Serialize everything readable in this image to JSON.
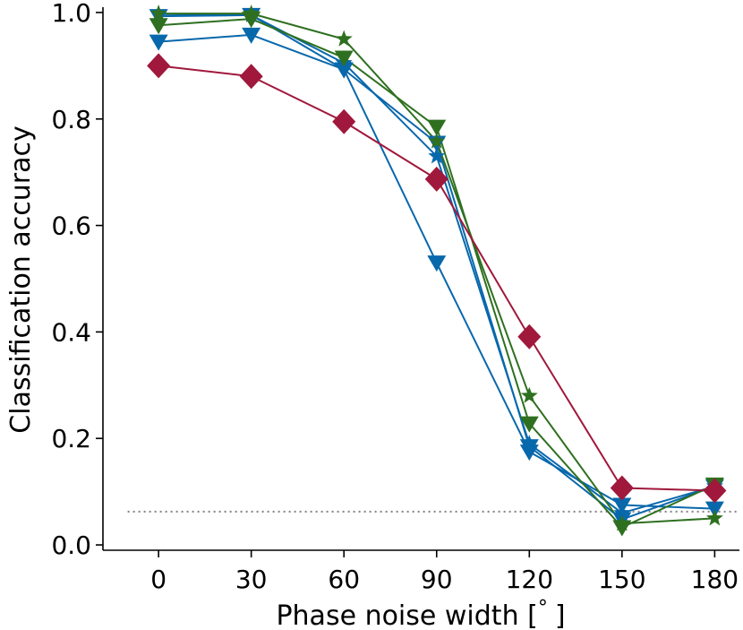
{
  "chart_data": {
    "type": "line",
    "title": "",
    "xlabel": "Phase noise width [$^\\circ$]",
    "xlabel_parts": {
      "text": "Phase noise width [",
      "degree": "°",
      "close": "]"
    },
    "ylabel": "Classification accuracy",
    "x": [
      0,
      30,
      60,
      90,
      120,
      150,
      180
    ],
    "x_tick_labels": [
      "0",
      "30",
      "60",
      "90",
      "120",
      "150",
      "180"
    ],
    "y_tick_values": [
      0.0,
      0.2,
      0.4,
      0.6,
      0.8,
      1.0
    ],
    "y_tick_labels": [
      "0.0",
      "0.2",
      "0.4",
      "0.6",
      "0.8",
      "1.0"
    ],
    "xlim": [
      -18,
      188
    ],
    "ylim": [
      -0.01,
      1.01
    ],
    "grid": false,
    "legend": "none",
    "chance_level": 0.0625,
    "chance_color": "#888888",
    "series": [
      {
        "name": "blue-triangle-a",
        "color": "#0868ac",
        "marker": "triangle-down",
        "values": [
          0.945,
          0.958,
          0.893,
          0.53,
          0.175,
          0.075,
          0.068
        ]
      },
      {
        "name": "blue-star",
        "color": "#0868ac",
        "marker": "star",
        "values": [
          0.997,
          0.995,
          0.905,
          0.73,
          0.19,
          0.06,
          0.11
        ]
      },
      {
        "name": "blue-triangle-b",
        "color": "#0868ac",
        "marker": "triangle-down",
        "values": [
          0.993,
          0.995,
          0.893,
          0.755,
          0.185,
          0.048,
          0.11
        ]
      },
      {
        "name": "green-star",
        "color": "#2e7020",
        "marker": "star",
        "values": [
          0.998,
          0.998,
          0.95,
          0.758,
          0.28,
          0.04,
          0.05
        ]
      },
      {
        "name": "green-triangle",
        "color": "#2e7020",
        "marker": "triangle-down",
        "values": [
          0.976,
          0.988,
          0.915,
          0.785,
          0.228,
          0.033,
          0.113
        ]
      },
      {
        "name": "red-diamond",
        "color": "#a0183c",
        "marker": "diamond",
        "values": [
          0.9,
          0.88,
          0.795,
          0.687,
          0.391,
          0.107,
          0.102
        ]
      }
    ]
  }
}
